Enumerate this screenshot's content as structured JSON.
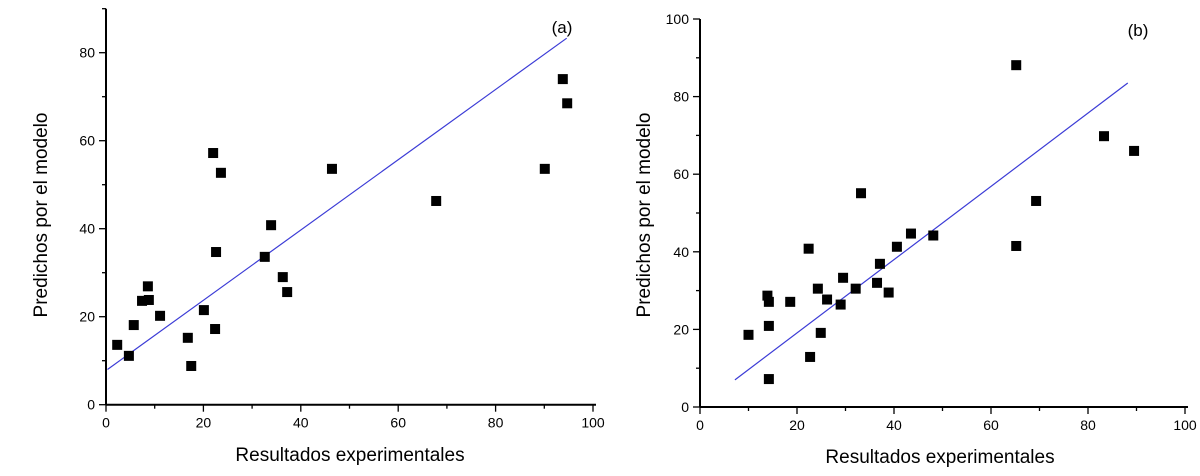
{
  "chart_data": [
    {
      "type": "scatter",
      "panel_label": "(a)",
      "xlabel": "Resultados experimentales",
      "ylabel": "Predichos por el modelo",
      "xlim": [
        0,
        100
      ],
      "ylim": [
        0,
        90
      ],
      "xticks": [
        0,
        20,
        40,
        60,
        80,
        100
      ],
      "yticks": [
        0,
        20,
        40,
        60,
        80
      ],
      "grid": false,
      "marker_color": "#000000",
      "line_color": "#3b3bd6",
      "points": [
        [
          2.3,
          13.6
        ],
        [
          4.7,
          11.1
        ],
        [
          5.7,
          18.1
        ],
        [
          7.4,
          23.6
        ],
        [
          8.6,
          26.9
        ],
        [
          8.8,
          23.8
        ],
        [
          11.1,
          20.2
        ],
        [
          16.8,
          15.2
        ],
        [
          17.5,
          8.8
        ],
        [
          20.1,
          21.5
        ],
        [
          22.0,
          57.2
        ],
        [
          22.4,
          17.2
        ],
        [
          22.6,
          34.7
        ],
        [
          23.6,
          52.7
        ],
        [
          32.6,
          33.6
        ],
        [
          33.9,
          40.8
        ],
        [
          36.3,
          29.0
        ],
        [
          37.2,
          25.6
        ],
        [
          46.4,
          53.6
        ],
        [
          67.8,
          46.3
        ],
        [
          90.1,
          53.6
        ],
        [
          93.8,
          74.0
        ],
        [
          94.7,
          68.5
        ]
      ],
      "fit_line": [
        [
          0.3,
          8.0
        ],
        [
          94.6,
          83.3
        ]
      ]
    },
    {
      "type": "scatter",
      "panel_label": "(b)",
      "xlabel": "Resultados experimentales",
      "ylabel": "Predichos por el modelo",
      "xlim": [
        0,
        100
      ],
      "ylim": [
        0,
        100
      ],
      "xticks": [
        0,
        20,
        40,
        60,
        80,
        100
      ],
      "yticks": [
        0,
        20,
        40,
        60,
        80,
        100
      ],
      "grid": false,
      "marker_color": "#000000",
      "line_color": "#3b3bd6",
      "points": [
        [
          10.0,
          18.6
        ],
        [
          13.9,
          28.7
        ],
        [
          14.2,
          27.1
        ],
        [
          14.2,
          20.9
        ],
        [
          14.2,
          7.2
        ],
        [
          18.6,
          27.1
        ],
        [
          22.4,
          40.8
        ],
        [
          22.7,
          12.9
        ],
        [
          24.3,
          30.5
        ],
        [
          24.9,
          19.1
        ],
        [
          26.2,
          27.7
        ],
        [
          29.0,
          26.4
        ],
        [
          29.5,
          33.3
        ],
        [
          32.1,
          30.5
        ],
        [
          33.2,
          55.1
        ],
        [
          36.5,
          32.0
        ],
        [
          37.1,
          36.9
        ],
        [
          38.9,
          29.5
        ],
        [
          40.6,
          41.3
        ],
        [
          43.5,
          44.7
        ],
        [
          48.1,
          44.2
        ],
        [
          65.2,
          88.1
        ],
        [
          65.2,
          41.5
        ],
        [
          69.3,
          53.1
        ],
        [
          83.3,
          69.8
        ],
        [
          89.5,
          66.0
        ]
      ],
      "fit_line": [
        [
          7.2,
          7.0
        ],
        [
          88.2,
          83.5
        ]
      ]
    }
  ]
}
